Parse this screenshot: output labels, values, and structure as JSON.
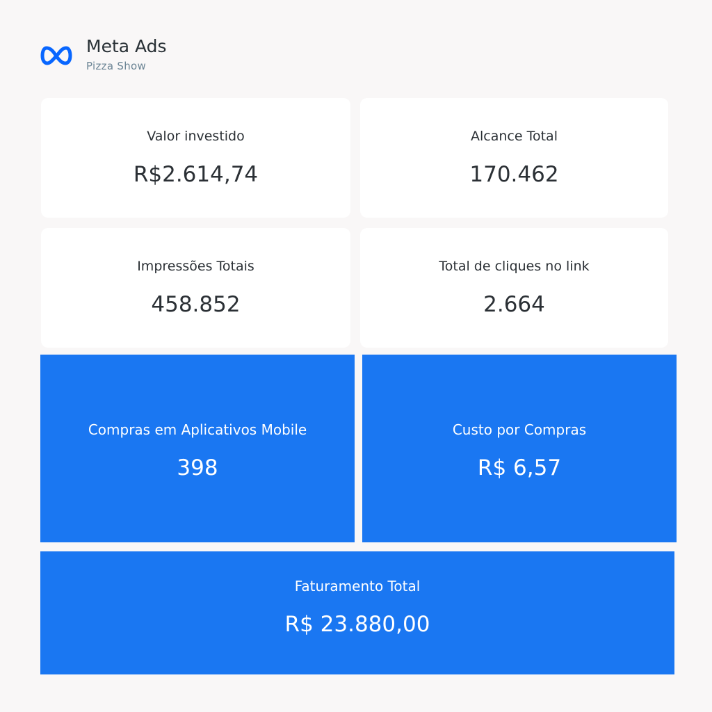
{
  "header": {
    "title": "Meta Ads",
    "subtitle": "Pizza Show",
    "logo_icon": "meta-infinity-logo",
    "brand_color": "#0866ff"
  },
  "cards": [
    {
      "label": "Valor investido",
      "value": "R$2.614,74"
    },
    {
      "label": "Alcance Total",
      "value": "170.462"
    },
    {
      "label": "Impressões Totais",
      "value": "458.852"
    },
    {
      "label": "Total de cliques no link",
      "value": "2.664"
    }
  ],
  "highlights": [
    {
      "label": "Compras em Aplicativos Mobile",
      "value": "398"
    },
    {
      "label": "Custo por Compras",
      "value": "R$ 6,57"
    },
    {
      "label": "Faturamento Total",
      "value": "R$ 23.880,00"
    }
  ],
  "colors": {
    "highlight": "#1a77f2",
    "background": "#f9f7f7"
  }
}
